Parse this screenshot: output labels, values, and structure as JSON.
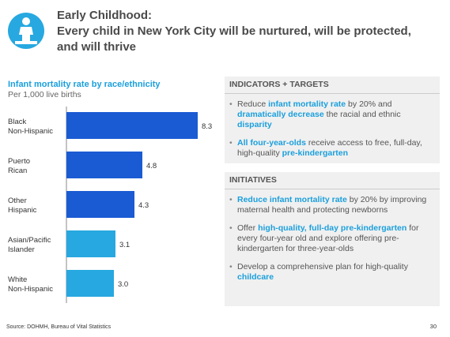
{
  "header": {
    "lines": [
      "Early Childhood:",
      "Every child in New York City will be nurtured, will be protected,",
      "and will thrive"
    ]
  },
  "chart_data": {
    "type": "bar",
    "orientation": "horizontal",
    "title": "Infant mortality rate by race/ethnicity",
    "subtitle": "Per 1,000 live births",
    "categories": [
      [
        "Black",
        "Non-Hispanic"
      ],
      [
        "Puerto",
        "Rican"
      ],
      [
        "Other",
        "Hispanic"
      ],
      [
        "Asian/Pacific",
        "Islander"
      ],
      [
        "White",
        "Non-Hispanic"
      ]
    ],
    "values": [
      8.3,
      4.8,
      4.3,
      3.1,
      3.0
    ],
    "value_labels": [
      "8.3",
      "4.8",
      "4.3",
      "3.1",
      "3.0"
    ],
    "colors": [
      "#1a5bd3",
      "#1a5bd3",
      "#1a5bd3",
      "#27a8e0",
      "#27a8e0"
    ]
  },
  "panels": [
    {
      "title": "INDICATORS + TARGETS",
      "bullets": [
        [
          {
            "text": "Reduce "
          },
          {
            "text": "infant mortality rate",
            "bold": true
          },
          {
            "text": " by 20% and "
          },
          {
            "text": "dramatically decrease",
            "bold": true
          },
          {
            "text": " the racial and ethnic "
          },
          {
            "text": "disparity",
            "bold": true
          }
        ],
        [
          {
            "text": "All four-year-olds",
            "bold": true
          },
          {
            "text": " receive access to free, full-day, high-quality "
          },
          {
            "text": "pre-kindergarten",
            "bold": true
          }
        ]
      ]
    },
    {
      "title": "INITIATIVES",
      "bullets": [
        [
          {
            "text": "Reduce infant mortality rate",
            "bold": true
          },
          {
            "text": " by 20% by improving maternal health and protecting newborns"
          }
        ],
        [
          {
            "text": "Offer "
          },
          {
            "text": "high-quality, full-day pre-kindergarten",
            "bold": true
          },
          {
            "text": " for every four-year old and explore offering pre-kindergarten for three-year-olds"
          }
        ],
        [
          {
            "text": "Develop a comprehensive plan for high-quality "
          },
          {
            "text": "childcare",
            "bold": true
          }
        ]
      ]
    }
  ],
  "footer": {
    "source": "Source: DOHMH, Bureau of Vital Statistics",
    "page": "30"
  }
}
